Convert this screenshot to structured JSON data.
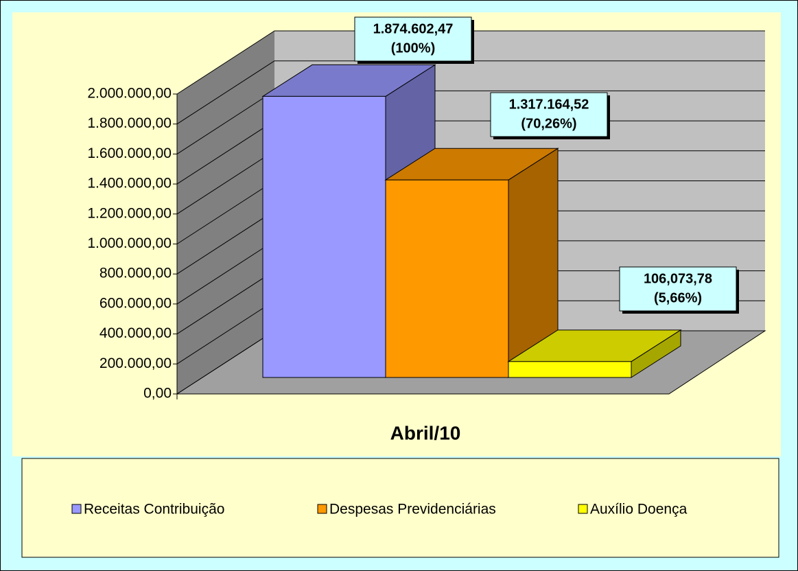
{
  "chart_data": {
    "type": "bar",
    "categories": [
      "Abril/10"
    ],
    "series": [
      {
        "name": "Receitas Contribuição",
        "color": "#9999ff",
        "values": [
          1874602.47
        ],
        "value_labels": [
          "1.874.602,47"
        ],
        "share_labels": [
          "(100%)"
        ]
      },
      {
        "name": "Despesas Previdenciárias",
        "color": "#ff9900",
        "values": [
          1317164.52
        ],
        "value_labels": [
          "1.317.164,52"
        ],
        "share_labels": [
          "(70,26%)"
        ]
      },
      {
        "name": "Auxílio Doença",
        "color": "#ffff00",
        "values": [
          106073.78
        ],
        "value_labels": [
          "106,073,78"
        ],
        "share_labels": [
          "(5,66%)"
        ]
      }
    ],
    "ylim": [
      0,
      2000000
    ],
    "yticks": [
      {
        "value": 0,
        "label": "0,00"
      },
      {
        "value": 200000,
        "label": "200.000,00"
      },
      {
        "value": 400000,
        "label": "400.000,00"
      },
      {
        "value": 600000,
        "label": "600.000,00"
      },
      {
        "value": 800000,
        "label": "800.000,00"
      },
      {
        "value": 1000000,
        "label": "1.000.000,00"
      },
      {
        "value": 1200000,
        "label": "1.200.000,00"
      },
      {
        "value": 1400000,
        "label": "1.400.000,00"
      },
      {
        "value": 1600000,
        "label": "1.600.000,00"
      },
      {
        "value": 1800000,
        "label": "1.800.000,00"
      },
      {
        "value": 2000000,
        "label": "2.000.000,00"
      }
    ],
    "grid": true
  }
}
